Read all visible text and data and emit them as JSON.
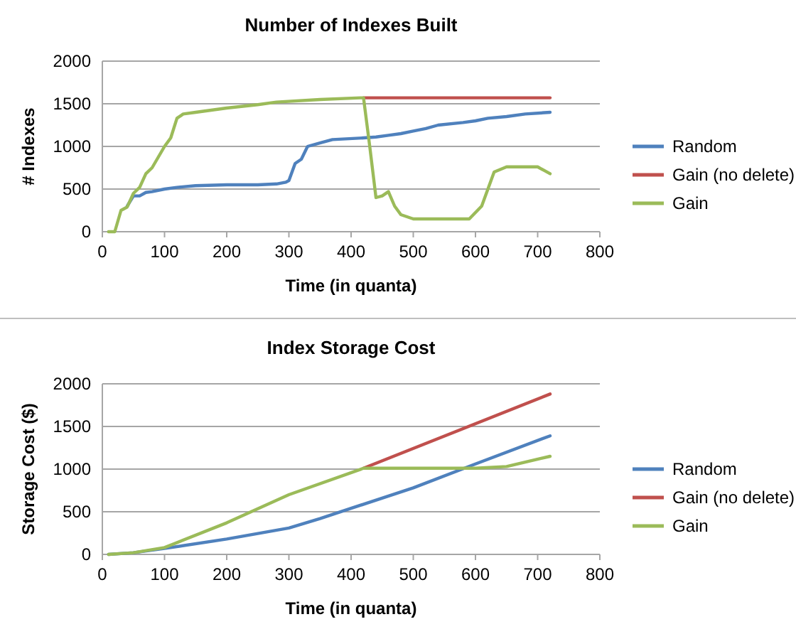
{
  "chart_data": [
    {
      "type": "line",
      "title": "Number of Indexes Built",
      "xlabel": "Time (in quanta)",
      "ylabel": "# Indexes",
      "xlim": [
        0,
        800
      ],
      "xticks": [
        0,
        100,
        200,
        300,
        400,
        500,
        600,
        700,
        800
      ],
      "ylim": [
        0,
        2000
      ],
      "yticks": [
        0,
        500,
        1000,
        1500,
        2000
      ],
      "grid": "y",
      "legend": "right",
      "series": [
        {
          "name": "Random",
          "color": "#4f81bd",
          "x": [
            40,
            50,
            60,
            70,
            80,
            100,
            120,
            150,
            200,
            250,
            280,
            295,
            300,
            310,
            320,
            330,
            350,
            370,
            420,
            440,
            460,
            480,
            500,
            520,
            540,
            580,
            600,
            620,
            650,
            680,
            720
          ],
          "values": [
            300,
            420,
            420,
            460,
            470,
            500,
            520,
            540,
            550,
            550,
            560,
            580,
            600,
            800,
            850,
            1000,
            1040,
            1080,
            1100,
            1110,
            1130,
            1150,
            1180,
            1210,
            1250,
            1280,
            1300,
            1330,
            1350,
            1380,
            1400
          ]
        },
        {
          "name": "Gain (no delete)",
          "color": "#c0504d",
          "x": [
            420,
            720
          ],
          "values": [
            1570,
            1570
          ]
        },
        {
          "name": "Gain",
          "color": "#9bbb59",
          "x": [
            10,
            20,
            30,
            40,
            50,
            60,
            70,
            80,
            100,
            110,
            120,
            130,
            150,
            200,
            250,
            280,
            350,
            415,
            420,
            430,
            440,
            450,
            460,
            470,
            480,
            500,
            550,
            590,
            610,
            630,
            650,
            700,
            720
          ],
          "values": [
            0,
            0,
            250,
            290,
            450,
            520,
            680,
            750,
            1000,
            1100,
            1330,
            1380,
            1400,
            1450,
            1490,
            1520,
            1550,
            1570,
            1570,
            1000,
            400,
            420,
            470,
            300,
            200,
            150,
            150,
            150,
            300,
            700,
            760,
            760,
            680
          ]
        }
      ]
    },
    {
      "type": "line",
      "title": "Index Storage Cost",
      "xlabel": "Time (in quanta)",
      "ylabel": "Storage Cost ($)",
      "xlim": [
        0,
        800
      ],
      "xticks": [
        0,
        100,
        200,
        300,
        400,
        500,
        600,
        700,
        800
      ],
      "ylim": [
        0,
        2000
      ],
      "yticks": [
        0,
        500,
        1000,
        1500,
        2000
      ],
      "grid": "y",
      "legend": "right",
      "series": [
        {
          "name": "Random",
          "color": "#4f81bd",
          "x": [
            10,
            50,
            100,
            200,
            300,
            350,
            400,
            500,
            600,
            720
          ],
          "values": [
            0,
            20,
            70,
            180,
            310,
            420,
            540,
            780,
            1060,
            1390
          ]
        },
        {
          "name": "Gain (no delete)",
          "color": "#c0504d",
          "x": [
            420,
            720
          ],
          "values": [
            1010,
            1880
          ]
        },
        {
          "name": "Gain",
          "color": "#9bbb59",
          "x": [
            10,
            50,
            100,
            200,
            300,
            420,
            500,
            600,
            650,
            720
          ],
          "values": [
            0,
            20,
            80,
            370,
            700,
            1010,
            1010,
            1010,
            1030,
            1150
          ]
        }
      ]
    }
  ]
}
